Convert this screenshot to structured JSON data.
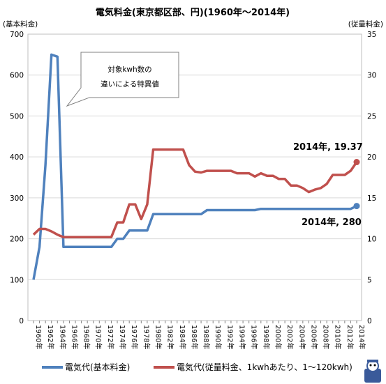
{
  "chart_data": {
    "type": "line",
    "title": "電気料金(東京都区部、円)(1960年～2014年)",
    "ylabel_left": "(基本料金)",
    "ylabel_right": "(従量料金)",
    "ylim_left": [
      0,
      700
    ],
    "ylim_right": [
      0,
      35
    ],
    "yticks_left": [
      "0",
      "100",
      "200",
      "300",
      "400",
      "500",
      "600",
      "700"
    ],
    "yticks_right": [
      "0",
      "5",
      "10",
      "15",
      "20",
      "25",
      "30",
      "35"
    ],
    "grid": true,
    "legend_position": "bottom",
    "x": [
      1960,
      1961,
      1962,
      1963,
      1964,
      1965,
      1966,
      1967,
      1968,
      1969,
      1970,
      1971,
      1972,
      1973,
      1974,
      1975,
      1976,
      1977,
      1978,
      1979,
      1980,
      1981,
      1982,
      1983,
      1984,
      1985,
      1986,
      1987,
      1988,
      1989,
      1990,
      1991,
      1992,
      1993,
      1994,
      1995,
      1996,
      1997,
      1998,
      1999,
      2000,
      2001,
      2002,
      2003,
      2004,
      2005,
      2006,
      2007,
      2008,
      2009,
      2010,
      2011,
      2012,
      2013,
      2014
    ],
    "xtick_labels": [
      "1960年",
      "1962年",
      "1964年",
      "1966年",
      "1968年",
      "1970年",
      "1972年",
      "1974年",
      "1976年",
      "1978年",
      "1980年",
      "1982年",
      "1984年",
      "1986年",
      "1988年",
      "1990年",
      "1992年",
      "1994年",
      "1996年",
      "1998年",
      "2000年",
      "2002年",
      "2004年",
      "2006年",
      "2008年",
      "2010年",
      "2012年",
      "2014年"
    ],
    "series": [
      {
        "name": "電気代(基本料金)",
        "axis": "left",
        "color": "#4f81bd",
        "values": [
          100,
          180,
          380,
          650,
          645,
          180,
          180,
          180,
          180,
          180,
          180,
          180,
          180,
          180,
          200,
          200,
          220,
          220,
          220,
          220,
          260,
          260,
          260,
          260,
          260,
          260,
          260,
          260,
          260,
          270,
          270,
          270,
          270,
          270,
          270,
          270,
          270,
          270,
          273,
          273,
          273,
          273,
          273,
          273,
          273,
          273,
          273,
          273,
          273,
          273,
          273,
          273,
          273,
          273,
          280
        ]
      },
      {
        "name": "電気代(従量料金、1kwhあたり、1～120kwh)",
        "axis": "right",
        "color": "#c0504d",
        "values": [
          10.5,
          11.2,
          11.2,
          10.9,
          10.5,
          10.2,
          10.2,
          10.2,
          10.2,
          10.2,
          10.2,
          10.2,
          10.2,
          10.2,
          12.0,
          12.0,
          14.2,
          14.2,
          12.4,
          14.2,
          20.9,
          20.9,
          20.9,
          20.9,
          20.9,
          20.9,
          19.0,
          18.2,
          18.1,
          18.3,
          18.3,
          18.3,
          18.3,
          18.3,
          18.0,
          18.0,
          18.0,
          17.6,
          18.0,
          17.7,
          17.7,
          17.3,
          17.3,
          16.5,
          16.5,
          16.2,
          15.7,
          16.0,
          16.2,
          16.7,
          17.8,
          17.8,
          17.8,
          18.3,
          19.37
        ]
      }
    ],
    "annotations": {
      "callout_line1": "対象kwh数の",
      "callout_line2": "違いによる特異値",
      "label_right_series": "2014年, 19.37",
      "label_left_series": "2014年, 280"
    }
  }
}
